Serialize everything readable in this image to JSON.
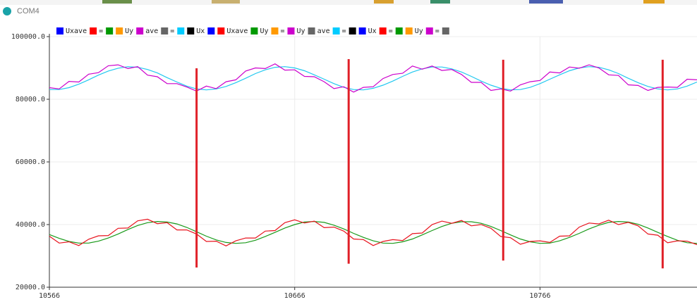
{
  "window": {
    "title": "COM4"
  },
  "chart_data": {
    "type": "line",
    "x": [
      10566,
      10570,
      10574,
      10578,
      10582,
      10586,
      10590,
      10594,
      10598,
      10602,
      10606,
      10610,
      10614,
      10618,
      10622,
      10626,
      10630,
      10634,
      10638,
      10642,
      10646,
      10650,
      10654,
      10658,
      10662,
      10666,
      10670,
      10674,
      10678,
      10682,
      10686,
      10690,
      10694,
      10698,
      10702,
      10706,
      10710,
      10714,
      10718,
      10722,
      10726,
      10730,
      10734,
      10738,
      10742,
      10746,
      10750,
      10754,
      10758,
      10762,
      10766,
      10770,
      10774,
      10778,
      10782,
      10786,
      10790,
      10794,
      10798,
      10802,
      10806,
      10810,
      10814,
      10818,
      10822,
      10826,
      10830
    ],
    "xlim": [
      10566,
      10830
    ],
    "xticks": [
      10566,
      10666,
      10766
    ],
    "ylim": [
      20000,
      100000
    ],
    "yticks": [
      {
        "value": 100000,
        "label": "100000.0"
      },
      {
        "value": 80000,
        "label": "80000.0"
      },
      {
        "value": 60000,
        "label": "60000.0"
      },
      {
        "value": 40000,
        "label": "40000.0"
      },
      {
        "value": 20000,
        "label": "20000.0"
      }
    ],
    "grid": true,
    "legend": [
      {
        "label": "Uxave",
        "color": "#0000ff"
      },
      {
        "label": "=",
        "color": "#ff0000"
      },
      {
        "label": null,
        "color": "#009900"
      },
      {
        "label": "Uy",
        "color": "#ff9900"
      },
      {
        "label": "ave",
        "color": "#cc00cc"
      },
      {
        "label": "=",
        "color": "#666666"
      },
      {
        "label": null,
        "color": "#00ccff"
      },
      {
        "label": "Ux",
        "color": "#000000"
      },
      {
        "label": null,
        "color": "#0000ff"
      },
      {
        "label": "Uxave",
        "color": "#ff0000"
      },
      {
        "label": "Uy",
        "color": "#009900"
      },
      {
        "label": "=",
        "color": "#ff9900"
      },
      {
        "label": "Uy",
        "color": "#cc00cc"
      },
      {
        "label": "ave",
        "color": "#666666"
      },
      {
        "label": "=",
        "color": "#00ccff"
      },
      {
        "label": null,
        "color": "#000000"
      },
      {
        "label": "Ux",
        "color": "#0000ff"
      },
      {
        "label": "=",
        "color": "#ff0000"
      },
      {
        "label": null,
        "color": "#009900"
      },
      {
        "label": "Uy",
        "color": "#ff9900"
      },
      {
        "label": "=",
        "color": "#cc00cc"
      },
      {
        "label": null,
        "color": "#666666"
      }
    ],
    "series": [
      {
        "color": "#22c8f0",
        "values": [
          83100,
          83100,
          83700,
          84800,
          86200,
          87700,
          89000,
          89900,
          90400,
          90200,
          89500,
          88400,
          86900,
          85500,
          84200,
          83300,
          83000,
          83300,
          84100,
          85300,
          86700,
          88200,
          89400,
          90200,
          90400,
          90000,
          89100,
          87800,
          86400,
          85000,
          83800,
          83100,
          83000,
          83500,
          84500,
          85800,
          87300,
          88700,
          89700,
          90300,
          90300,
          89700,
          88700,
          87300,
          85800,
          84500,
          83500,
          83000,
          83100,
          83800,
          85000,
          86400,
          87800,
          89100,
          90000,
          90400,
          90200,
          89400,
          88200,
          86700,
          85300,
          84100,
          83300,
          83000,
          83300,
          84200,
          85500
        ]
      },
      {
        "color": "#cc00cc",
        "values": [
          83700,
          83300,
          85700,
          85500,
          88000,
          88500,
          90700,
          91000,
          89800,
          90400,
          87700,
          87200,
          85000,
          85000,
          83900,
          82600,
          84200,
          83400,
          85600,
          86200,
          89000,
          90000,
          89800,
          91300,
          89300,
          89400,
          87300,
          87200,
          85600,
          83400,
          84000,
          82300,
          83800,
          84000,
          86600,
          87900,
          88300,
          90600,
          89600,
          90600,
          89200,
          89500,
          87900,
          85400,
          85400,
          82800,
          83300,
          82600,
          84600,
          85600,
          86000,
          88700,
          88400,
          90300,
          89900,
          91000,
          90000,
          87800,
          87600,
          84600,
          84400,
          82800,
          83800,
          83900,
          83800,
          86400,
          86200
        ]
      },
      {
        "color": "#1a9a1a",
        "values": [
          36800,
          35600,
          34600,
          34100,
          34100,
          34700,
          35700,
          37000,
          38400,
          39700,
          40600,
          41000,
          40800,
          40200,
          39100,
          37700,
          36300,
          35100,
          34300,
          34000,
          34200,
          35000,
          36200,
          37500,
          38900,
          40000,
          40800,
          41000,
          40700,
          39800,
          38600,
          37200,
          35900,
          34800,
          34100,
          34000,
          34500,
          35400,
          36700,
          38100,
          39400,
          40400,
          40900,
          40900,
          40400,
          39400,
          38100,
          36700,
          35400,
          34500,
          34000,
          34100,
          34800,
          35900,
          37200,
          38600,
          39800,
          40700,
          41000,
          40800,
          40100,
          38900,
          37500,
          36200,
          35000,
          34200,
          34000
        ]
      },
      {
        "color": "#e8141e",
        "values": [
          36300,
          34100,
          34500,
          33300,
          35300,
          36400,
          36500,
          38800,
          38900,
          41200,
          41700,
          40300,
          40600,
          38300,
          38300,
          37000,
          34600,
          34700,
          33200,
          34800,
          35700,
          35700,
          37900,
          38100,
          40600,
          41500,
          40500,
          41100,
          39000,
          39200,
          37900,
          35400,
          35200,
          33300,
          34600,
          35200,
          34900,
          37100,
          37300,
          40000,
          41100,
          40400,
          41300,
          39600,
          40000,
          38800,
          36200,
          35800,
          33700,
          34600,
          34800,
          34300,
          36300,
          36400,
          39200,
          40500,
          40200,
          41400,
          40000,
          40700,
          39600,
          37000,
          36600,
          34200,
          34800,
          34700,
          33600
        ]
      }
    ],
    "markers": {
      "color": "#e02028",
      "x": [
        10626,
        10688,
        10751,
        10816
      ],
      "low": [
        26300,
        27500,
        28500,
        26000
      ],
      "high": [
        89900,
        92800,
        92600,
        92600
      ]
    }
  }
}
